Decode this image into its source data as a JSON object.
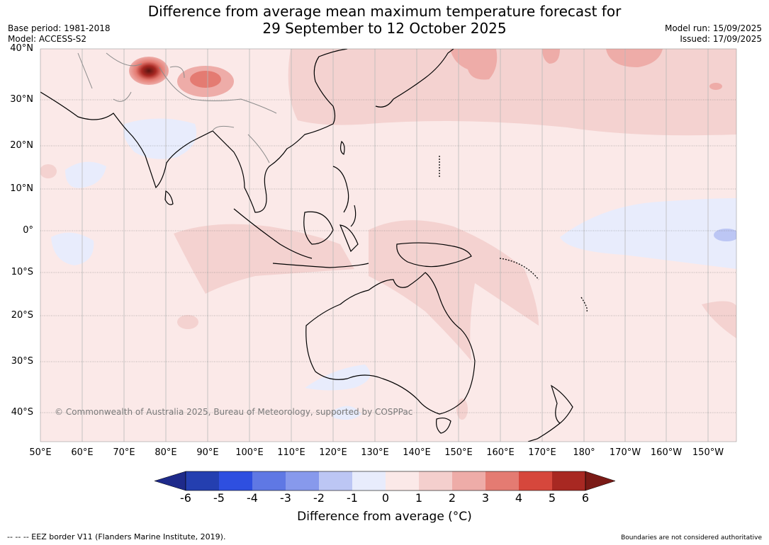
{
  "title": {
    "line1": "Difference from average mean maximum temperature forecast for",
    "line2": "29 September to 12 October 2025"
  },
  "meta_left": {
    "base_period": "Base period: 1981-2018",
    "model": "Model: ACCESS-S2"
  },
  "meta_right": {
    "model_run": "Model run: 15/09/2025",
    "issued": "Issued: 17/09/2025"
  },
  "map": {
    "lat_labels": [
      "40°N",
      "30°N",
      "20°N",
      "10°N",
      "0°",
      "10°S",
      "20°S",
      "30°S",
      "40°S"
    ],
    "lon_labels": [
      "50°E",
      "60°E",
      "70°E",
      "80°E",
      "90°E",
      "100°E",
      "110°E",
      "120°E",
      "130°E",
      "140°E",
      "150°E",
      "160°E",
      "170°E",
      "180°",
      "170°W",
      "160°W",
      "150°W"
    ],
    "copyright": "© Commonwealth of Australia 2025, Bureau of Meteorology, supported by COSPPac"
  },
  "colorbar": {
    "ticks": [
      "-6",
      "-5",
      "-4",
      "-3",
      "-2",
      "-1",
      "0",
      "1",
      "2",
      "3",
      "4",
      "5",
      "6"
    ],
    "colors": [
      "#1e2a8a",
      "#243fb0",
      "#2e4fe0",
      "#5f78e4",
      "#8799ec",
      "#bcc6f4",
      "#e8ecfc",
      "#fbe9e8",
      "#f4cfcd",
      "#eeaca8",
      "#e47b72",
      "#d6473c",
      "#a82822",
      "#7a1a16"
    ],
    "label": "Difference from average (°C)"
  },
  "footer": {
    "eez": "--  --  -- EEZ border V11 (Flanders Marine Institute, 2019).",
    "boundaries": "Boundaries are not considered authoritative"
  }
}
